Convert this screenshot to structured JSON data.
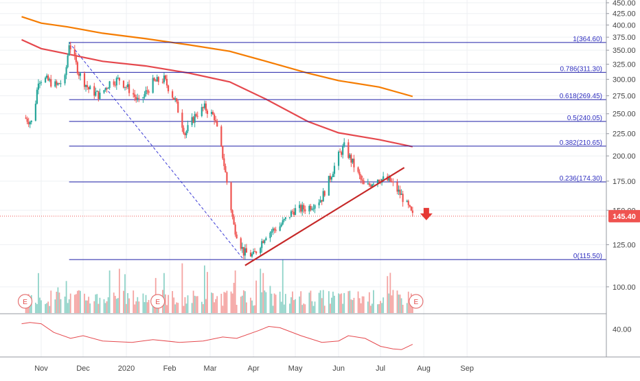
{
  "chart_data": {
    "type": "candlestick",
    "colors": {
      "up": "#26a69a",
      "down": "#ef5350",
      "volume_up": "#8fd3c8",
      "volume_down": "#f4a3a1",
      "ma_long": "#f57c00",
      "ma_short": "#e5484d",
      "fib": "#1f1fa8",
      "trendline": "#c62828",
      "fib_diagonal": "#3a3ad6",
      "oscillator": "#e5484d",
      "price_badge": "#ef5350",
      "arrow": "#e53935"
    },
    "x_axis": {
      "labels": [
        "Nov",
        "Dec",
        "2020",
        "Feb",
        "Mar",
        "Apr",
        "May",
        "Jun",
        "Jul",
        "Aug",
        "Sep"
      ]
    },
    "y_axis": {
      "scale": "log",
      "range": [
        88,
        450
      ],
      "ticks": [
        "450.00",
        "425.00",
        "400.00",
        "375.00",
        "350.00",
        "325.00",
        "300.00",
        "275.00",
        "250.00",
        "225.00",
        "200.00",
        "175.00",
        "150.00",
        "125.00",
        "100.00"
      ]
    },
    "last_price": "145.40",
    "fibonacci": [
      {
        "level": "1",
        "price": 364.6,
        "label": "1(364.60)"
      },
      {
        "level": "0.786",
        "price": 311.3,
        "label": "0.786(311.30)"
      },
      {
        "level": "0.618",
        "price": 269.45,
        "label": "0.618(269.45)"
      },
      {
        "level": "0.5",
        "price": 240.05,
        "label": "0.5(240.05)"
      },
      {
        "level": "0.382",
        "price": 210.65,
        "label": "0.382(210.65)"
      },
      {
        "level": "0.236",
        "price": 174.3,
        "label": "0.236(174.30)"
      },
      {
        "level": "0",
        "price": 115.5,
        "label": "0(115.50)"
      }
    ],
    "price_path": [
      [
        "2019-10-20",
        245
      ],
      [
        "2019-10-26",
        238
      ],
      [
        "2019-10-30",
        300
      ],
      [
        "2019-11-04",
        300
      ],
      [
        "2019-11-12",
        290
      ],
      [
        "2019-11-18",
        300
      ],
      [
        "2019-11-21",
        364
      ],
      [
        "2019-11-28",
        310
      ],
      [
        "2019-12-05",
        285
      ],
      [
        "2019-12-13",
        275
      ],
      [
        "2019-12-20",
        295
      ],
      [
        "2019-12-27",
        300
      ],
      [
        "2020-01-05",
        280
      ],
      [
        "2020-01-10",
        265
      ],
      [
        "2020-01-20",
        295
      ],
      [
        "2020-01-28",
        300
      ],
      [
        "2020-02-05",
        268
      ],
      [
        "2020-02-12",
        225
      ],
      [
        "2020-02-20",
        250
      ],
      [
        "2020-02-26",
        258
      ],
      [
        "2020-03-04",
        246
      ],
      [
        "2020-03-10",
        200
      ],
      [
        "2020-03-18",
        138
      ],
      [
        "2020-03-25",
        120
      ],
      [
        "2020-04-01",
        118
      ],
      [
        "2020-04-10",
        132
      ],
      [
        "2020-04-20",
        138
      ],
      [
        "2020-04-30",
        150
      ],
      [
        "2020-05-10",
        152
      ],
      [
        "2020-05-20",
        160
      ],
      [
        "2020-06-01",
        200
      ],
      [
        "2020-06-05",
        210
      ],
      [
        "2020-06-12",
        190
      ],
      [
        "2020-06-20",
        168
      ],
      [
        "2020-06-28",
        178
      ],
      [
        "2020-07-08",
        175
      ],
      [
        "2020-07-16",
        162
      ],
      [
        "2020-07-21",
        152
      ],
      [
        "2020-07-24",
        145.4
      ]
    ],
    "moving_averages": [
      {
        "color_key": "ma_long",
        "points": [
          [
            "2019-10-18",
            418
          ],
          [
            "2019-11-01",
            404
          ],
          [
            "2019-11-20",
            396
          ],
          [
            "2019-12-15",
            383
          ],
          [
            "2020-01-15",
            372
          ],
          [
            "2020-02-15",
            360
          ],
          [
            "2020-03-15",
            348
          ],
          [
            "2020-04-10",
            330
          ],
          [
            "2020-05-10",
            310
          ],
          [
            "2020-06-01",
            298
          ],
          [
            "2020-06-30",
            288
          ],
          [
            "2020-07-24",
            274
          ]
        ]
      },
      {
        "color_key": "ma_short",
        "points": [
          [
            "2019-10-18",
            370
          ],
          [
            "2019-11-01",
            353
          ],
          [
            "2019-11-20",
            343
          ],
          [
            "2019-12-15",
            330
          ],
          [
            "2020-01-15",
            322
          ],
          [
            "2020-02-15",
            310
          ],
          [
            "2020-03-15",
            296
          ],
          [
            "2020-04-10",
            270
          ],
          [
            "2020-05-10",
            240
          ],
          [
            "2020-06-01",
            226
          ],
          [
            "2020-06-30",
            218
          ],
          [
            "2020-07-24",
            210
          ]
        ]
      }
    ],
    "trendline": {
      "from": [
        "2020-03-26",
        112
      ],
      "to": [
        "2020-07-18",
        188
      ]
    },
    "fib_diagonal": {
      "from": [
        "2019-11-21",
        364.6
      ],
      "to": [
        "2020-03-25",
        115.5
      ]
    },
    "volume": {
      "max": 100,
      "values": []
    },
    "earnings_markers": {
      "label": "E",
      "dates": [
        "2019-10-18",
        "2020-01-21",
        "2020-07-24"
      ]
    },
    "oscillator": {
      "ticks": [
        "40.00"
      ],
      "range": [
        0,
        60
      ],
      "points": [
        [
          "2019-10-18",
          48
        ],
        [
          "2019-10-24",
          50
        ],
        [
          "2019-11-01",
          48
        ],
        [
          "2019-11-10",
          35
        ],
        [
          "2019-11-22",
          26
        ],
        [
          "2019-12-01",
          30
        ],
        [
          "2019-12-15",
          22
        ],
        [
          "2020-01-05",
          20
        ],
        [
          "2020-01-20",
          24
        ],
        [
          "2020-02-08",
          20
        ],
        [
          "2020-02-25",
          22
        ],
        [
          "2020-03-10",
          28
        ],
        [
          "2020-03-20",
          26
        ],
        [
          "2020-04-05",
          38
        ],
        [
          "2020-04-12",
          44
        ],
        [
          "2020-04-20",
          42
        ],
        [
          "2020-05-05",
          30
        ],
        [
          "2020-05-20",
          20
        ],
        [
          "2020-06-01",
          22
        ],
        [
          "2020-06-08",
          30
        ],
        [
          "2020-06-20",
          26
        ],
        [
          "2020-07-01",
          14
        ],
        [
          "2020-07-10",
          10
        ],
        [
          "2020-07-16",
          9
        ],
        [
          "2020-07-24",
          17
        ]
      ]
    }
  }
}
